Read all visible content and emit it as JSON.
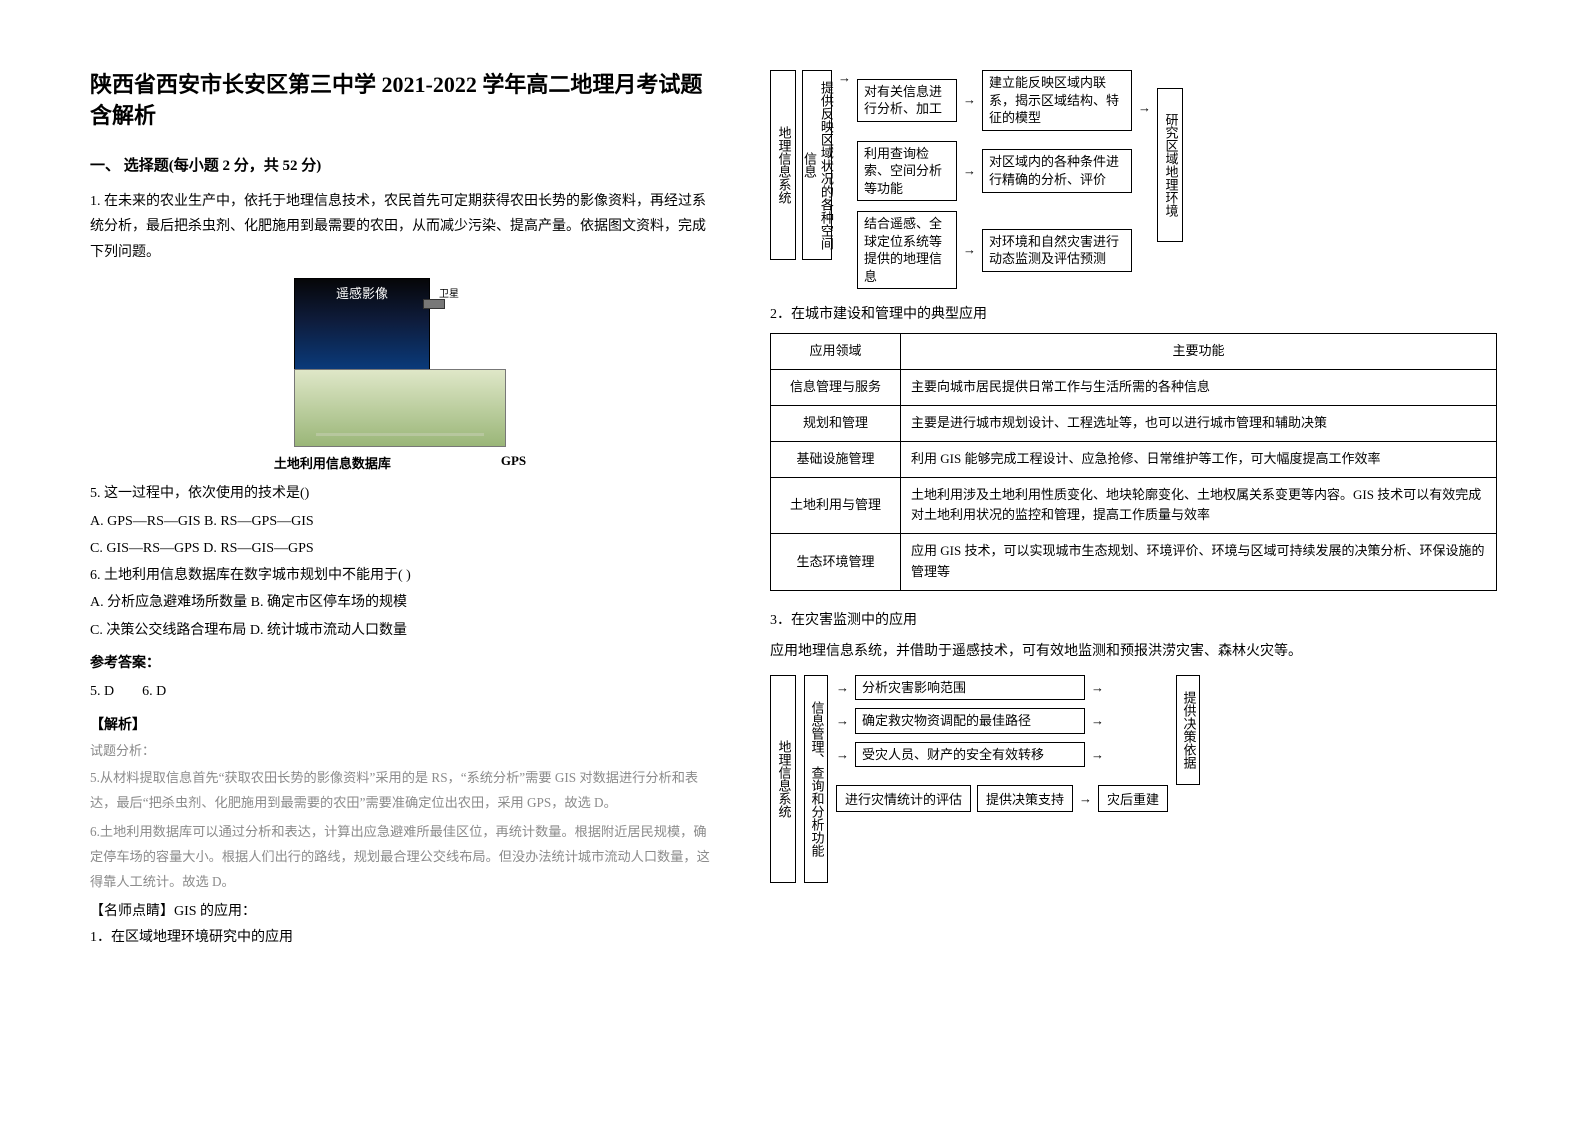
{
  "title": "陕西省西安市长安区第三中学 2021-2022 学年高二地理月考试题含解析",
  "section_heading": "一、 选择题(每小题 2 分，共 52 分)",
  "intro": "1. 在未来的农业生产中，依托于地理信息技术，农民首先可定期获得农田长势的影像资料，再经过系统分析，最后把杀虫剂、化肥施用到最需要的农田，从而减少污染、提高产量。依据图文资料，完成下列问题。",
  "illustration": {
    "sat_label": "遥感影像",
    "sat_right": "卫星",
    "cap_left": "土地利用信息数据库",
    "cap_right": "GPS"
  },
  "q5": "5. 这一过程中，依次使用的技术是()",
  "q5_opts": "A. GPS—RS—GIS  B. RS—GPS—GIS",
  "q5_opts2": "C. GIS—RS—GPS  D. RS—GIS—GPS",
  "q6": "6. 土地利用信息数据库在数字城市规划中不能用于( )",
  "q6_opts": "A. 分析应急避难场所数量  B. 确定市区停车场的规模",
  "q6_opts2": "C. 决策公交线路合理布局  D. 统计城市流动人口数量",
  "ans_label": "参考答案：",
  "ans": "5. D　　6. D",
  "anal_title": "【解析】",
  "anal_sub": "试题分析：",
  "anal5": "5.从材料提取信息首先“获取农田长势的影像资料”采用的是 RS，“系统分析”需要 GIS 对数据进行分析和表达，最后“把杀虫剂、化肥施用到最需要的农田”需要准确定位出农田，采用 GPS，故选 D。",
  "anal6": "6.土地利用数据库可以通过分析和表达，计算出应急避难所最佳区位，再统计数量。根据附近居民规模，确定停车场的容量大小。根据人们出行的路线，规划最合理公交线布局。但没办法统计城市流动人口数量，这得靠人工统计。故选 D。",
  "tip_title": "【名师点睛】GIS 的应用：",
  "tip1": "1．在区域地理环境研究中的应用",
  "diagram1": {
    "leftmost": "地理信息系统",
    "left2": "提供反映区域状况的各种空间信息",
    "rows": [
      {
        "a": "对有关信息进行分析、加工",
        "b": "建立能反映区域内联系，揭示区域结构、特征的模型"
      },
      {
        "a": "利用查询检索、空间分析等功能",
        "b": "对区域内的各种条件进行精确的分析、评价"
      },
      {
        "a": "结合遥感、全球定位系统等提供的地理信息",
        "b": "对环境和自然灾害进行动态监测及评估预测"
      }
    ],
    "right": "研究区域地理环境"
  },
  "sub2": "2．在城市建设和管理中的典型应用",
  "table": {
    "headers": [
      "应用领域",
      "主要功能"
    ],
    "rows": [
      [
        "信息管理与服务",
        "主要向城市居民提供日常工作与生活所需的各种信息"
      ],
      [
        "规划和管理",
        "主要是进行城市规划设计、工程选址等，也可以进行城市管理和辅助决策"
      ],
      [
        "基础设施管理",
        "利用 GIS 能够完成工程设计、应急抢修、日常维护等工作，可大幅度提高工作效率"
      ],
      [
        "土地利用与管理",
        "土地利用涉及土地利用性质变化、地块轮廓变化、土地权属关系变更等内容。GIS 技术可以有效完成对土地利用状况的监控和管理，提高工作质量与效率"
      ],
      [
        "生态环境管理",
        "应用 GIS 技术，可以实现城市生态规划、环境评价、环境与区域可持续发展的决策分析、环保设施的管理等"
      ]
    ]
  },
  "sub3": "3．在灾害监测中的应用",
  "sub3_text": "应用地理信息系统，并借助于遥感技术，可有效地监测和预报洪涝灾害、森林火灾等。",
  "diagram2": {
    "left": "地理信息系统",
    "left2": "信息管理、查询和分析功能",
    "topRows": [
      "分析灾害影响范围",
      "确定救灾物资调配的最佳路径",
      "受灾人员、财产的安全有效转移"
    ],
    "right": "提供决策依据",
    "bottom": [
      "进行灾情统计的评估",
      "提供决策支持",
      "灾后重建"
    ]
  },
  "colors": {
    "border": "#000000",
    "bg": "#ffffff",
    "muted": "#8b8b8b"
  }
}
